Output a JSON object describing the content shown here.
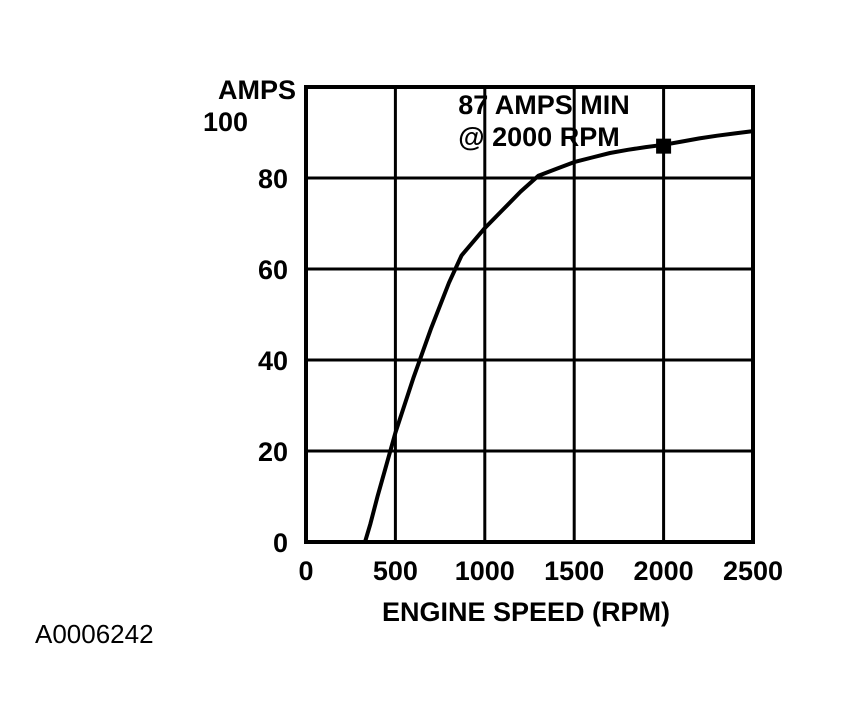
{
  "chart_data": {
    "type": "line",
    "title": "",
    "xlabel": "ENGINE SPEED (RPM)",
    "ylabel": "AMPS",
    "xlim": [
      0,
      2500
    ],
    "ylim": [
      0,
      100
    ],
    "x_ticks": [
      0,
      500,
      1000,
      1500,
      2000,
      2500
    ],
    "y_ticks": [
      0,
      20,
      40,
      60,
      80,
      100
    ],
    "grid": true,
    "series": [
      {
        "x": [
          330,
          360,
          400,
          450,
          500,
          600,
          700,
          800,
          870,
          1000,
          1100,
          1200,
          1300,
          1400,
          1500,
          1600,
          1700,
          1800,
          1900,
          2000,
          2100,
          2200,
          2300,
          2400,
          2500
        ],
        "y": [
          0,
          4,
          10,
          17,
          24,
          36,
          47,
          57,
          63,
          69,
          73,
          77,
          80.5,
          82,
          83.5,
          84.5,
          85.5,
          86.2,
          86.8,
          87.3,
          88,
          88.7,
          89.3,
          89.8,
          90.3
        ]
      }
    ],
    "marker": {
      "x": 2000,
      "y": 87
    },
    "annotation": [
      "87 AMPS MIN",
      "@ 2000 RPM"
    ]
  },
  "figure_id": "A0006242"
}
